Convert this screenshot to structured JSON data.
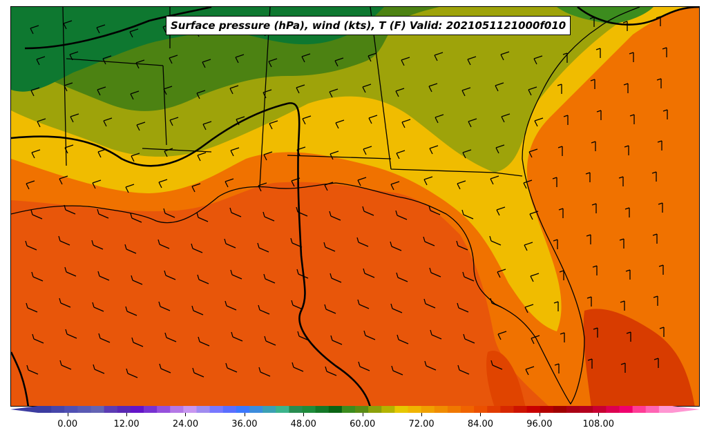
{
  "title": "Surface pressure (hPa), wind (kts), T (F) Valid: 2021051121000f010",
  "colorbar": {
    "tick_labels": [
      "0.00",
      "12.00",
      "24.00",
      "36.00",
      "48.00",
      "60.00",
      "72.00",
      "84.00",
      "96.00",
      "108.00"
    ],
    "tick_values": [
      0,
      12,
      24,
      36,
      48,
      60,
      72,
      84,
      96,
      108
    ],
    "min": -6,
    "max": 123,
    "step": 3,
    "colors": [
      "#3c3ca0",
      "#4646aa",
      "#5050b4",
      "#5a5ab4",
      "#6464b4",
      "#5c3cb4",
      "#5a28b4",
      "#6414c8",
      "#7832d2",
      "#9650dc",
      "#b478e6",
      "#c896f0",
      "#a08cf0",
      "#7878ff",
      "#5a6eff",
      "#3c78ff",
      "#3c8cdc",
      "#3ca0b4",
      "#3cb48c",
      "#288c50",
      "#1e8c3c",
      "#147828",
      "#0a6414",
      "#3c8c1e",
      "#5a8c14",
      "#8ca00a",
      "#b4b400",
      "#e6c800",
      "#f0b400",
      "#f0a000",
      "#f08c00",
      "#f07800",
      "#f06400",
      "#eb5000",
      "#e13c00",
      "#d72800",
      "#cd1400",
      "#c80000",
      "#b40000",
      "#a00000",
      "#aa0014",
      "#b4001e",
      "#c80032",
      "#dc0050",
      "#f0006e",
      "#ff3c96",
      "#ff64b4",
      "#ff96d2"
    ],
    "extend": "both"
  },
  "layers": {
    "contour": "Temperature (F), filled",
    "lines": "Surface pressure (hPa)",
    "barbs": "Wind (kts)"
  },
  "region": "US Gulf Coast and Southeast",
  "colors": {
    "gulf": "#e8580a",
    "land_south": "#f07000",
    "land_mid": "#f0b400",
    "land_north": "#9aa008",
    "land_far_north": "#4a8010",
    "forest": "#0e7a30"
  }
}
